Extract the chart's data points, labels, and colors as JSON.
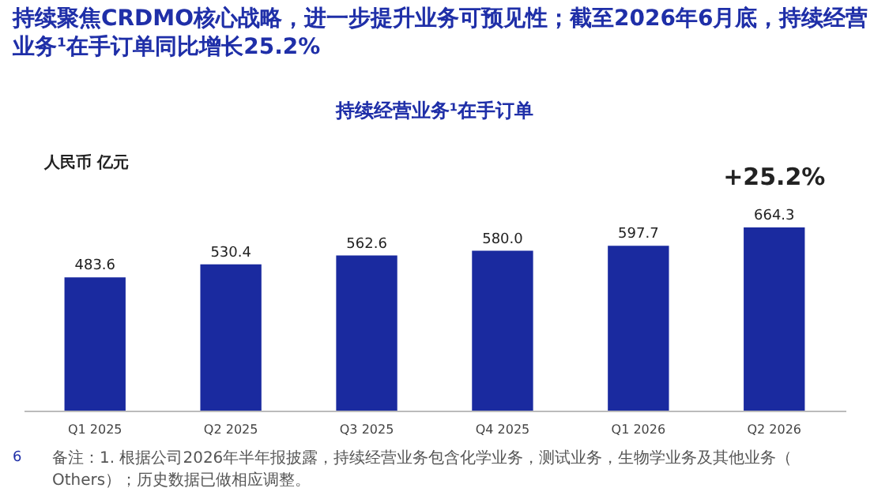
{
  "chart_data": {
    "type": "bar",
    "title": [
      "持续聚焦CRDMO核心战略，进一步提升业务可预见性；截至2026年6月底，持续经营",
      "业务¹在手订单同比增长25.2%"
    ],
    "subtitle": "持续经营业务¹在手订单",
    "ylabel": "人民币 亿元",
    "categories": [
      "Q1 2025",
      "Q2 2025",
      "Q3 2025",
      "Q4 2025",
      "Q1 2026",
      "Q2 2026"
    ],
    "values": [
      483.6,
      530.4,
      562.6,
      580.0,
      597.7,
      664.3
    ],
    "color": "#1a2a9f",
    "value_labels": [
      "483.6",
      "530.4",
      "562.6",
      "580.0",
      "597.7",
      "664.3"
    ],
    "annotations": [
      {
        "text": "+25.2%",
        "x": "Q2 2026",
        "y": 664.3
      },
      "备注：1. 根据公司2026年半年报披露，持续经营业务包含化学业务，测试业务，生物学业务及其他业务（Others）；历史数据已做相应调整。",
      "6"
    ]
  }
}
